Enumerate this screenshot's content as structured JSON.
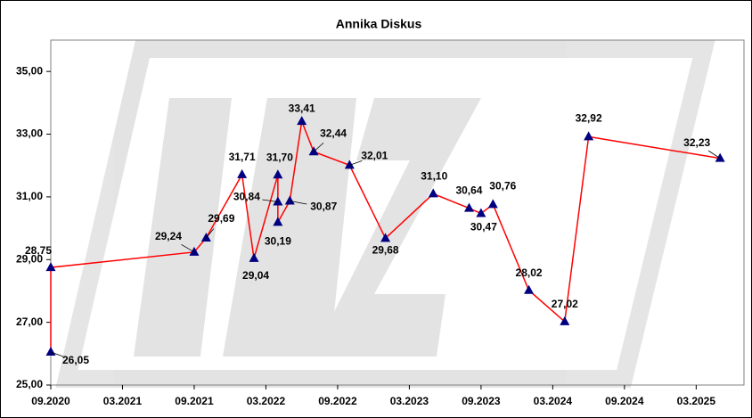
{
  "chart_data": {
    "type": "line",
    "title": "Annika Diskus",
    "x": [
      "2020-09",
      "2020-09",
      "2021-09",
      "2021-10",
      "2022-01",
      "2022-02",
      "2022-04",
      "2022-04",
      "2022-04",
      "2022-05",
      "2022-06",
      "2022-07",
      "2022-10",
      "2023-01",
      "2023-05",
      "2023-08",
      "2023-09",
      "2023-10",
      "2024-01",
      "2024-04",
      "2024-06",
      "2025-05"
    ],
    "series": [
      {
        "name": "Annika Diskus",
        "color": "#ff0000",
        "marker_color": "#000080",
        "values": [
          26.05,
          28.75,
          29.24,
          29.69,
          31.71,
          29.04,
          31.7,
          30.84,
          30.19,
          30.87,
          33.41,
          32.44,
          32.01,
          29.68,
          31.1,
          30.64,
          30.47,
          30.76,
          28.02,
          27.02,
          32.92,
          32.23
        ],
        "value_labels": [
          "26,05",
          "28,75",
          "29,24",
          "29,69",
          "31,71",
          "29,04",
          "31,70",
          "30,84",
          "30,19",
          "30,87",
          "33,41",
          "32,44",
          "32,01",
          "29,68",
          "31,10",
          "30,64",
          "30,47",
          "30,76",
          "28,02",
          "27,02",
          "32,92",
          "32,23"
        ]
      }
    ],
    "xlim": [
      "2020-09",
      "2025-07"
    ],
    "xticks": [
      {
        "value": "2020-09",
        "label": "09.2020"
      },
      {
        "value": "2021-03",
        "label": "03.2021"
      },
      {
        "value": "2021-09",
        "label": "09.2021"
      },
      {
        "value": "2022-03",
        "label": "03.2022"
      },
      {
        "value": "2022-09",
        "label": "09.2022"
      },
      {
        "value": "2023-03",
        "label": "03.2023"
      },
      {
        "value": "2023-09",
        "label": "09.2023"
      },
      {
        "value": "2024-03",
        "label": "03.2024"
      },
      {
        "value": "2024-09",
        "label": "09.2024"
      },
      {
        "value": "2025-03",
        "label": "03.2025"
      }
    ],
    "ylim": [
      25,
      36
    ],
    "yticks": [
      {
        "value": 25,
        "label": "25,00"
      },
      {
        "value": 27,
        "label": "27,00"
      },
      {
        "value": 29,
        "label": "29,00"
      },
      {
        "value": 31,
        "label": "31,00"
      },
      {
        "value": 33,
        "label": "33,00"
      },
      {
        "value": 35,
        "label": "35,00"
      }
    ],
    "grid": false
  }
}
